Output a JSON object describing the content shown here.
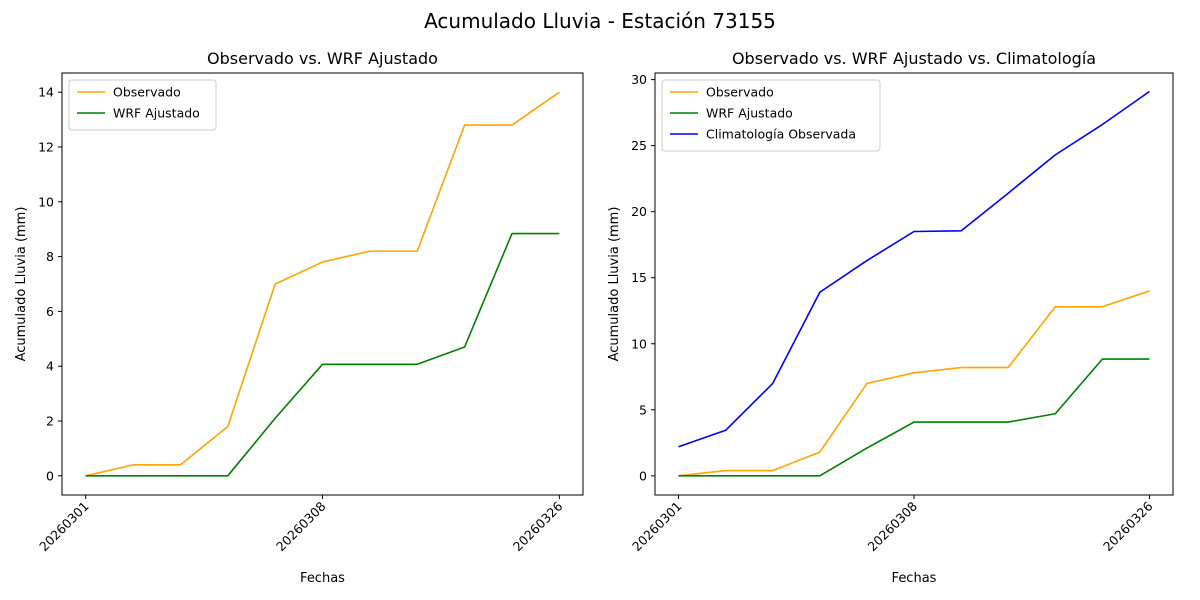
{
  "figure": {
    "title": "Acumulado Lluvia - Estación 73155"
  },
  "colors": {
    "Observado": "#FFA500",
    "WRF Ajustado": "#008000",
    "Climatología Observada": "#0000FF"
  },
  "chart_data": [
    {
      "type": "line",
      "title": "Observado vs. WRF Ajustado",
      "xlabel": "Fechas",
      "ylabel": "Acumulado Lluvia (mm)",
      "x": [
        0,
        1,
        2,
        3,
        4,
        5,
        6,
        7,
        8,
        9,
        10
      ],
      "xticks": [
        {
          "pos": 0,
          "label": "20260301"
        },
        {
          "pos": 5,
          "label": "20260308"
        },
        {
          "pos": 10,
          "label": "20260326"
        }
      ],
      "yticks": [
        0,
        2,
        4,
        6,
        8,
        10,
        12,
        14
      ],
      "ylim": [
        -0.7,
        14.7
      ],
      "xlim": [
        -0.5,
        10.5
      ],
      "legend": "top-left",
      "grid": false,
      "series": [
        {
          "name": "Observado",
          "values": [
            0,
            0.4,
            0.4,
            1.8,
            7.0,
            7.8,
            8.2,
            8.2,
            12.8,
            12.8,
            14.0
          ]
        },
        {
          "name": "WRF Ajustado",
          "values": [
            0,
            0,
            0,
            0,
            2.1,
            4.07,
            4.07,
            4.07,
            4.7,
            8.84,
            8.84
          ]
        }
      ]
    },
    {
      "type": "line",
      "title": "Observado vs. WRF Ajustado vs. Climatología",
      "xlabel": "Fechas",
      "ylabel": "Acumulado Lluvia (mm)",
      "x": [
        0,
        1,
        2,
        3,
        4,
        5,
        6,
        7,
        8,
        9,
        10
      ],
      "xticks": [
        {
          "pos": 0,
          "label": "20260301"
        },
        {
          "pos": 5,
          "label": "20260308"
        },
        {
          "pos": 10,
          "label": "20260326"
        }
      ],
      "yticks": [
        0,
        5,
        10,
        15,
        20,
        25,
        30
      ],
      "ylim": [
        -1.45,
        30.5
      ],
      "xlim": [
        -0.5,
        10.5
      ],
      "legend": "top-left",
      "grid": false,
      "series": [
        {
          "name": "Observado",
          "values": [
            0,
            0.4,
            0.4,
            1.8,
            7.0,
            7.8,
            8.2,
            8.2,
            12.8,
            12.8,
            14.0
          ]
        },
        {
          "name": "WRF Ajustado",
          "values": [
            0,
            0,
            0,
            0,
            2.1,
            4.07,
            4.07,
            4.07,
            4.7,
            8.84,
            8.84
          ]
        },
        {
          "name": "Climatología Observada",
          "values": [
            2.2,
            3.45,
            7.0,
            13.9,
            16.3,
            18.5,
            18.55,
            21.4,
            24.3,
            26.6,
            29.1
          ]
        }
      ]
    }
  ]
}
